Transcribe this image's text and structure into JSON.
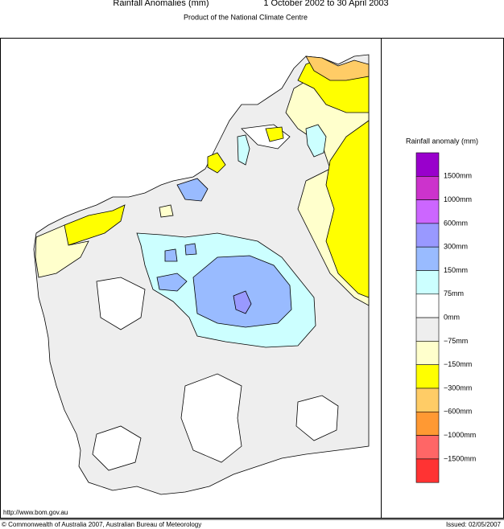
{
  "header": {
    "title": "Rainfall Anomalies (mm)",
    "period": "1 October 2002 to 30 April 2003",
    "subtitle": "Product of the National Climate Centre"
  },
  "legend": {
    "title": "Rainfall anomaly (mm)",
    "labels": [
      "1500mm",
      "1000mm",
      "600mm",
      "300mm",
      "150mm",
      "75mm",
      "0mm",
      "−75mm",
      "−150mm",
      "−300mm",
      "−600mm",
      "−1000mm",
      "−1500mm"
    ],
    "colors": [
      "#9900cc",
      "#cc33cc",
      "#cc66ff",
      "#9999ff",
      "#99bbff",
      "#ccffff",
      "#ffffff",
      "#eeeeee",
      "#ffffcc",
      "#ffff00",
      "#ffcc66",
      "#ff9933",
      "#ff6666",
      "#ff3333"
    ]
  },
  "footer": {
    "url": "http://www.bom.gov.au",
    "copyright": "© Commonwealth of Australia 2007, Australian Bureau of Meteorology",
    "issued": "Issued: 02/05/2007"
  }
}
